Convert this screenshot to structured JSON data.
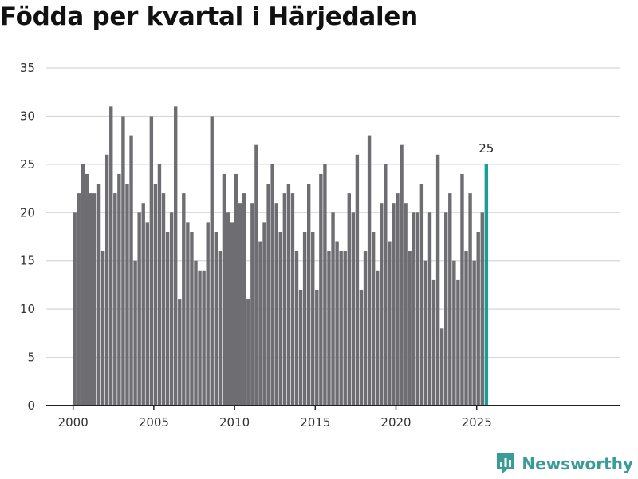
{
  "chart_data": {
    "type": "bar",
    "title": "Födda per kvartal i Härjedalen",
    "xlabel": "",
    "ylabel": "",
    "ylim": [
      0,
      35
    ],
    "yticks": [
      0,
      5,
      10,
      15,
      20,
      25,
      30,
      35
    ],
    "xticks": [
      2000,
      2005,
      2010,
      2015,
      2020,
      2025
    ],
    "grid": true,
    "series": [
      {
        "name": "Födda",
        "start_year": 2000,
        "start_quarter": 1,
        "values": [
          20,
          22,
          25,
          24,
          22,
          22,
          23,
          16,
          26,
          31,
          22,
          24,
          30,
          23,
          28,
          15,
          20,
          21,
          19,
          30,
          23,
          25,
          22,
          18,
          20,
          31,
          11,
          22,
          19,
          18,
          15,
          14,
          14,
          19,
          30,
          18,
          16,
          24,
          20,
          19,
          24,
          21,
          22,
          11,
          21,
          27,
          17,
          19,
          23,
          25,
          21,
          18,
          22,
          23,
          22,
          16,
          12,
          18,
          23,
          18,
          12,
          24,
          25,
          16,
          20,
          17,
          16,
          16,
          22,
          20,
          26,
          12,
          16,
          28,
          18,
          14,
          21,
          25,
          17,
          21,
          22,
          27,
          21,
          16,
          20,
          20,
          23,
          15,
          20,
          13,
          26,
          8,
          20,
          22,
          15,
          13,
          24,
          16,
          22,
          15,
          18,
          20,
          25
        ]
      }
    ],
    "highlight": {
      "index": 102,
      "label": "25",
      "color": "#16a095"
    },
    "bar_color": "#6e6d72"
  },
  "branding": {
    "name": "Newsworthy"
  }
}
